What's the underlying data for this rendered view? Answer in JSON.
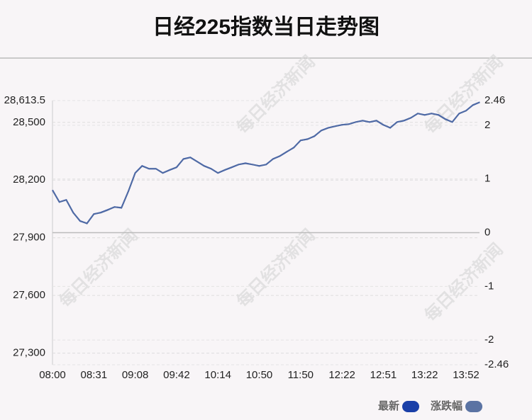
{
  "chart_data": {
    "type": "line",
    "title": "日经225指数当日走势图",
    "watermark": "每日经济新闻",
    "categories": [
      "08:00",
      null,
      null,
      null,
      null,
      null,
      "08:31",
      null,
      null,
      null,
      null,
      null,
      "09:08",
      null,
      null,
      null,
      null,
      null,
      "09:42",
      null,
      null,
      null,
      null,
      null,
      "10:14",
      null,
      null,
      null,
      null,
      null,
      "10:50",
      null,
      null,
      null,
      null,
      null,
      "11:50",
      null,
      null,
      null,
      null,
      null,
      "12:22",
      null,
      null,
      null,
      null,
      null,
      "12:51",
      null,
      null,
      null,
      null,
      null,
      "13:22",
      null,
      null,
      null,
      null,
      null,
      "13:52",
      null,
      null
    ],
    "series": [
      {
        "name": "最新",
        "color": "#1a3fa8",
        "axis": "y",
        "values": [
          28148,
          28086,
          28097,
          28031,
          27987,
          27975,
          28023,
          28031,
          28045,
          28060,
          28056,
          28141,
          28237,
          28274,
          28259,
          28259,
          28237,
          28252,
          28266,
          28310,
          28318,
          28296,
          28274,
          28259,
          28237,
          28252,
          28266,
          28281,
          28288,
          28281,
          28274,
          28281,
          28310,
          28325,
          28347,
          28369,
          28406,
          28413,
          28428,
          28458,
          28472,
          28480,
          28487,
          28491,
          28502,
          28509,
          28502,
          28509,
          28487,
          28472,
          28502,
          28509,
          28524,
          28546,
          28539,
          28546,
          28539,
          28517,
          28502,
          28546,
          28561,
          28590,
          28605
        ]
      },
      {
        "name": "涨跌幅",
        "color": "#5b73a3",
        "axis": "y2",
        "values": [
          0.79,
          0.57,
          0.61,
          0.37,
          0.22,
          0.17,
          0.35,
          0.37,
          0.42,
          0.48,
          0.46,
          0.77,
          1.11,
          1.24,
          1.19,
          1.19,
          1.11,
          1.17,
          1.22,
          1.37,
          1.4,
          1.32,
          1.24,
          1.19,
          1.11,
          1.17,
          1.22,
          1.27,
          1.29,
          1.27,
          1.24,
          1.27,
          1.37,
          1.43,
          1.51,
          1.58,
          1.72,
          1.74,
          1.8,
          1.9,
          1.95,
          1.98,
          2.01,
          2.02,
          2.06,
          2.09,
          2.06,
          2.09,
          2.01,
          1.95,
          2.06,
          2.09,
          2.14,
          2.22,
          2.19,
          2.22,
          2.19,
          2.11,
          2.06,
          2.22,
          2.27,
          2.38,
          2.43
        ]
      }
    ],
    "ylim": [
      27239.5,
      28613.5
    ],
    "yticks": [
      {
        "value": 28613.5,
        "label": "28,613.5"
      },
      {
        "value": 28500,
        "label": "28,500"
      },
      {
        "value": 28200,
        "label": "28,200"
      },
      {
        "value": 27900,
        "label": "27,900"
      },
      {
        "value": 27600,
        "label": "27,600"
      },
      {
        "value": 27300,
        "label": "27,300"
      }
    ],
    "y2lim": [
      -2.46,
      2.46
    ],
    "y2ticks": [
      2.46,
      2,
      1,
      0,
      -1,
      -2,
      -2.46
    ],
    "grid": true
  }
}
